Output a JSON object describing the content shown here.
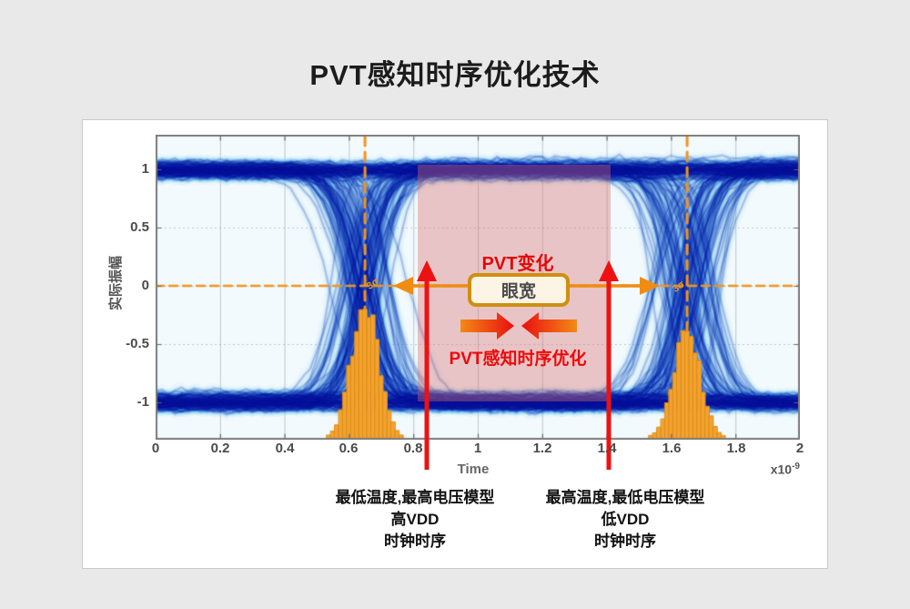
{
  "page": {
    "title": "PVT感知时序优化技术"
  },
  "chart": {
    "y_label": "实际振幅",
    "x_label": "Time",
    "x_exp_base": "x10",
    "x_exp": "-9",
    "x_tick_labels": [
      "0",
      "0.2",
      "0.4",
      "0.6",
      "0.8",
      "1",
      "1.2",
      "1.4",
      "1.6",
      "1.8",
      "2"
    ],
    "y_tick_labels": [
      "1",
      "0.5",
      "0",
      "-0.5",
      "-1"
    ]
  },
  "annotations": {
    "pvt_change": "PVT变化",
    "eye_width": "眼宽",
    "pvt_optimization": "PVT感知时序优化",
    "left_note_line1": "最低温度,最高电压模型",
    "left_note_line2": "高VDD",
    "left_note_line3": "时钟时序",
    "right_note_line1": "最高温度,最低电压模型",
    "right_note_line2": "低VDD",
    "right_note_line3": "时钟时序"
  },
  "colors": {
    "accent_orange": "#f0941e",
    "measure_arrow_orange": "#ef8c12",
    "marker_red": "#ee1111",
    "pvt_region_pink": "#d96c6c",
    "histogram_fill": "#f3a232",
    "histogram_stroke": "#dd8e12",
    "text_red": "#e10707",
    "box_border_gold": "#cf8f10"
  },
  "chart_data": {
    "type": "heatmap",
    "subtype": "eye-diagram",
    "xlabel": "Time",
    "x_unit": "x10^-9 s",
    "ylabel": "实际振幅",
    "xlim": [
      0,
      2
    ],
    "ylim": [
      -1.3,
      1.3
    ],
    "x_ticks": [
      0,
      0.2,
      0.4,
      0.6,
      0.8,
      1,
      1.2,
      1.4,
      1.6,
      1.8,
      2
    ],
    "y_ticks": [
      -1,
      -0.5,
      0,
      0.5,
      1
    ],
    "grid": true,
    "legend": "none",
    "signal_levels": [
      -1,
      1
    ],
    "crossing_times_ns": [
      0.65,
      1.65
    ],
    "jitter_sigma_ns": 0.045,
    "transition_width_ns": 0.13,
    "jitter_histograms": [
      {
        "center_ns": 0.65,
        "sigma_ns": 0.042,
        "peak_frac": 0.44
      },
      {
        "center_ns": 1.65,
        "sigma_ns": 0.042,
        "peak_frac": 0.35
      }
    ],
    "crossing_sigma_labels": [
      "3σ",
      "3σ"
    ],
    "pvt_region_ns": [
      0.81,
      1.41
    ],
    "pvt_region_amplitude": [
      -0.99,
      1.04
    ],
    "red_marker_times_ns": [
      0.84,
      1.41
    ],
    "eye_width_arrow_span_ns": [
      0.74,
      1.56
    ],
    "zero_line_amplitude": 0
  }
}
